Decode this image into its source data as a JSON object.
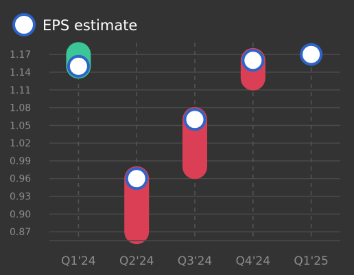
{
  "chart_data": {
    "type": "range-dot",
    "title": "",
    "xlabel": "",
    "ylabel": "",
    "categories": [
      "Q1'24",
      "Q2'24",
      "Q3'24",
      "Q4'24",
      "Q1'25"
    ],
    "ylim": [
      0.855,
      1.19
    ],
    "yticks": [
      0.87,
      0.9,
      0.93,
      0.96,
      0.99,
      1.02,
      1.05,
      1.08,
      1.11,
      1.14,
      1.17
    ],
    "legend": {
      "placement": "top-left",
      "label": "EPS estimate"
    },
    "grid": {
      "horizontal": true,
      "vertical": "dashed"
    },
    "series": [
      {
        "name": "EPS estimate",
        "values": [
          1.15,
          0.96,
          1.06,
          1.16,
          1.17
        ]
      }
    ],
    "ranges": [
      {
        "category": "Q1'24",
        "from": 1.15,
        "to": 1.17,
        "direction": "up"
      },
      {
        "category": "Q2'24",
        "from": 0.96,
        "to": 0.87,
        "direction": "down"
      },
      {
        "category": "Q3'24",
        "from": 1.06,
        "to": 0.98,
        "direction": "down"
      },
      {
        "category": "Q4'24",
        "from": 1.16,
        "to": 1.13,
        "direction": "down"
      },
      {
        "category": "Q1'25",
        "from": null,
        "to": null,
        "direction": "none"
      }
    ],
    "colors": {
      "background": "#333333",
      "up": "#3cc596",
      "down": "#db3f56",
      "marker_fill": "#ffffff",
      "marker_stroke": "#2e63c9"
    }
  }
}
